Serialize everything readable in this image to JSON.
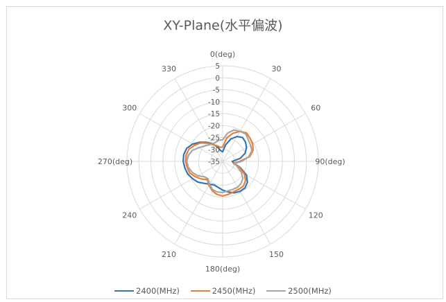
{
  "chart_data": {
    "type": "line",
    "subtype": "polar",
    "title": "XY-Plane(水平偏波)",
    "angular_axis": {
      "direction": "clockwise",
      "zero": "top",
      "tick_labels": [
        "0(deg)",
        "30",
        "60",
        "90(deg)",
        "120",
        "150",
        "180(deg)",
        "210",
        "240",
        "270(deg)",
        "300",
        "330"
      ]
    },
    "radial_axis": {
      "range": [
        -35,
        5
      ],
      "ticks": [
        "5",
        "0",
        "-5",
        "-10",
        "-15",
        "-20",
        "-25",
        "-30",
        "-35"
      ],
      "grid": true
    },
    "legend_position": "bottom",
    "series": [
      {
        "name": "2400(MHz)",
        "color": "#2e75b6",
        "angle": [
          0,
          10,
          20,
          30,
          40,
          50,
          60,
          70,
          80,
          90,
          100,
          110,
          120,
          130,
          140,
          150,
          160,
          170,
          180,
          190,
          200,
          210,
          220,
          230,
          240,
          250,
          260,
          270,
          280,
          290,
          300,
          310,
          320,
          330,
          340,
          350
        ],
        "values": [
          -31,
          -28,
          -25,
          -23,
          -22,
          -22.5,
          -23.5,
          -25,
          -27.5,
          -31,
          -30,
          -27,
          -23.5,
          -21.5,
          -20.5,
          -20.5,
          -21,
          -22,
          -23,
          -24,
          -24.5,
          -24,
          -23,
          -21.5,
          -20.5,
          -19.5,
          -19,
          -18.5,
          -18.5,
          -19,
          -20.5,
          -22.5,
          -24.5,
          -26.5,
          -28.5,
          -30.5
        ]
      },
      {
        "name": "2450(MHz)",
        "color": "#ed7d31",
        "angle": [
          0,
          10,
          20,
          30,
          40,
          50,
          60,
          70,
          80,
          90,
          100,
          110,
          120,
          130,
          140,
          150,
          160,
          170,
          180,
          190,
          200,
          210,
          220,
          230,
          240,
          250,
          260,
          270,
          280,
          290,
          300,
          310,
          320,
          330,
          340,
          350
        ],
        "values": [
          -29,
          -25,
          -22.5,
          -20.5,
          -19.5,
          -20,
          -20.5,
          -21.5,
          -23.5,
          -28,
          -30.5,
          -27.5,
          -24.5,
          -22.5,
          -21.5,
          -21.5,
          -21.5,
          -21,
          -20.5,
          -21,
          -22,
          -23.5,
          -25,
          -23.5,
          -22,
          -20.5,
          -20,
          -19.5,
          -19.5,
          -20,
          -21.5,
          -23,
          -25,
          -27,
          -28,
          -29
        ]
      },
      {
        "name": "2500(MHz)",
        "color": "#a5a5a5",
        "angle": [
          0,
          10,
          20,
          30,
          40,
          50,
          60,
          70,
          80,
          90,
          100,
          110,
          120,
          130,
          140,
          150,
          160,
          170,
          180,
          190,
          200,
          210,
          220,
          230,
          240,
          250,
          260,
          270,
          280,
          290,
          300,
          310,
          320,
          330,
          340,
          350
        ],
        "values": [
          -26,
          -23,
          -21,
          -20.5,
          -20,
          -21,
          -21.5,
          -22,
          -24,
          -27,
          -30,
          -28.5,
          -26,
          -24,
          -23,
          -22.5,
          -22.5,
          -22.5,
          -22,
          -22,
          -22.5,
          -24,
          -25.5,
          -25,
          -23,
          -21.5,
          -20.5,
          -20,
          -20.5,
          -21.5,
          -23.5,
          -25,
          -26,
          -26.5,
          -26.5,
          -26
        ]
      }
    ]
  }
}
